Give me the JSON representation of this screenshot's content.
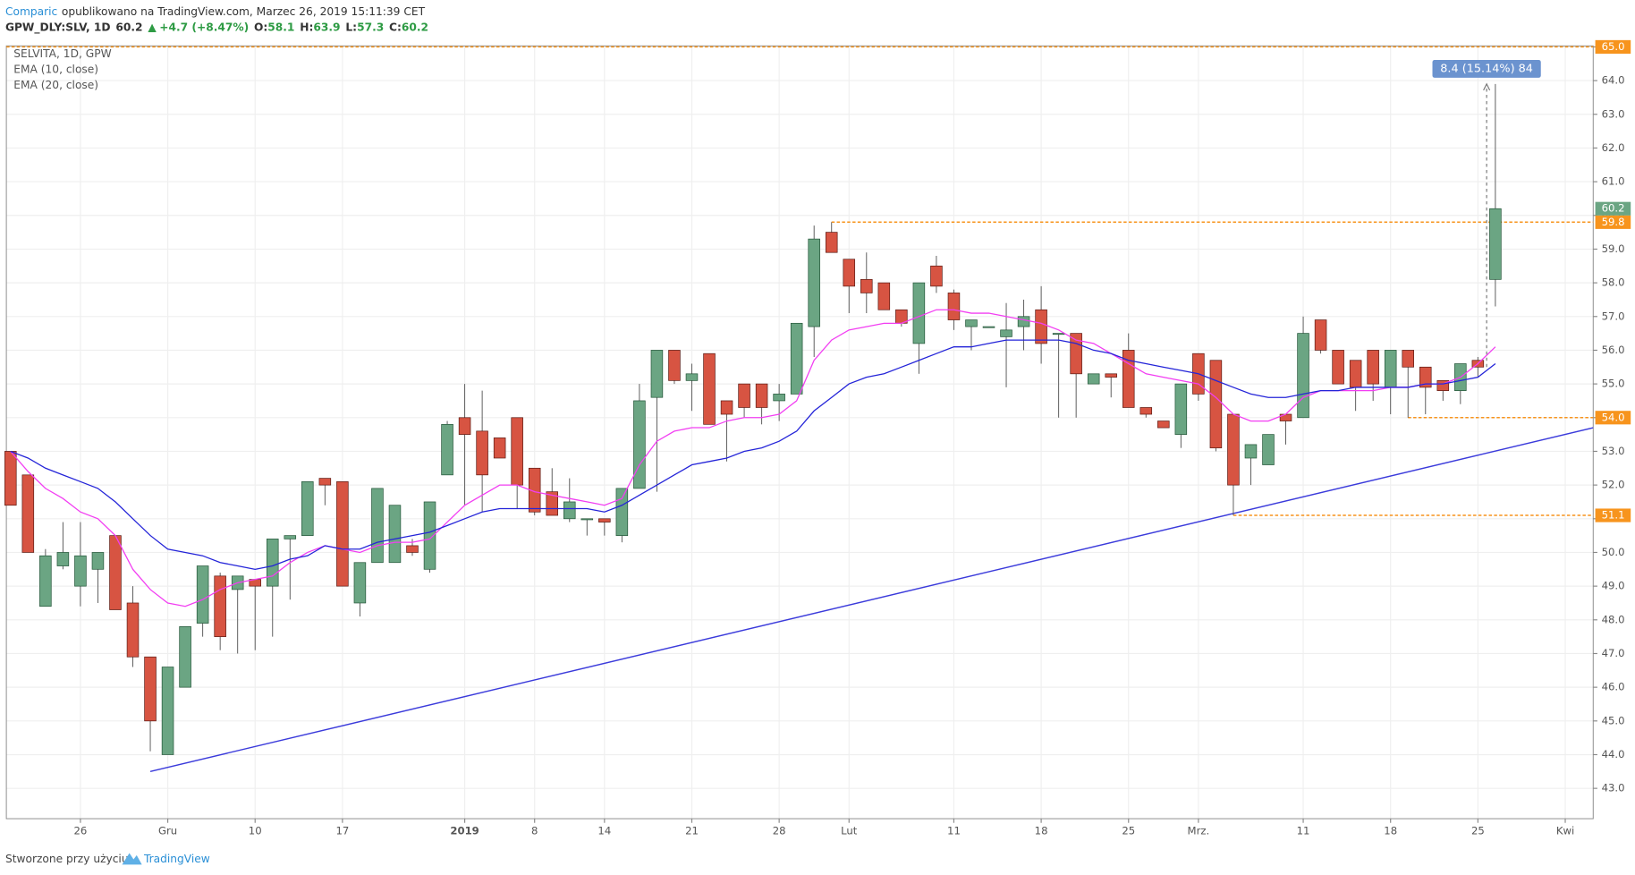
{
  "chart_data": {
    "type": "candlestick",
    "header": {
      "source": "Comparic",
      "published": "opublikowano na TradingView.com, Marzec 26, 2019 15:11:39 CET",
      "symbol": "GPW_DLY:SLV, 1D",
      "arrow": "▲",
      "change": "+4.7 (+8.47%)",
      "ohlc_labels": [
        "O:",
        "H:",
        "L:",
        "C:"
      ]
    },
    "title": "SELVITA, 1D, GPW",
    "open": [
      53.0,
      52.3,
      48.4,
      49.6,
      49.0,
      49.5,
      50.5,
      48.5,
      46.9,
      44.0,
      46.0,
      47.9,
      49.3,
      48.9,
      49.2,
      49.0,
      50.4,
      50.5,
      52.2,
      52.1,
      48.5,
      49.7,
      49.7,
      50.2,
      49.5,
      52.3,
      54.0,
      53.6,
      53.4,
      54.0,
      52.5,
      51.8,
      51.0,
      51.0,
      51.0,
      50.5,
      51.9,
      54.6,
      56.0,
      55.1,
      55.9,
      54.5,
      55.0,
      55.0,
      54.5,
      54.7,
      56.7,
      59.5,
      58.7,
      58.1,
      58.0,
      57.2,
      56.2,
      58.5,
      57.7,
      56.7,
      56.7,
      56.4,
      56.7,
      57.2,
      56.5,
      56.5,
      55.0,
      55.3,
      56.0,
      54.3,
      53.9,
      53.5,
      55.9,
      55.7,
      54.1,
      52.8,
      52.6,
      54.1,
      54.0,
      56.9,
      56.0,
      55.7,
      56.0,
      54.9,
      56.0,
      55.5,
      55.1,
      54.8,
      55.7,
      58.1
    ],
    "high": [
      53.0,
      52.3,
      50.1,
      50.9,
      50.9,
      50.0,
      50.5,
      49.0,
      46.9,
      46.6,
      47.8,
      49.6,
      49.4,
      49.3,
      49.2,
      50.4,
      50.5,
      52.1,
      52.2,
      52.1,
      49.7,
      51.9,
      51.4,
      50.4,
      51.5,
      53.9,
      55.0,
      54.8,
      53.4,
      54.0,
      52.5,
      52.5,
      52.2,
      51.0,
      51.0,
      51.9,
      55.0,
      56.0,
      56.0,
      55.6,
      55.9,
      54.5,
      55.0,
      55.0,
      55.0,
      56.8,
      59.7,
      59.8,
      58.7,
      58.9,
      58.0,
      57.2,
      58.0,
      58.8,
      57.8,
      56.9,
      56.7,
      57.4,
      57.5,
      57.9,
      56.5,
      56.5,
      55.3,
      55.3,
      56.5,
      54.3,
      53.9,
      55.0,
      55.9,
      55.7,
      54.1,
      53.2,
      53.5,
      54.1,
      57.0,
      56.9,
      56.0,
      55.7,
      56.0,
      56.0,
      56.0,
      55.5,
      55.1,
      55.6,
      55.8,
      63.9
    ],
    "low": [
      51.4,
      50.0,
      48.4,
      49.5,
      48.4,
      48.5,
      48.3,
      46.6,
      44.1,
      44.0,
      46.0,
      47.5,
      47.1,
      47.0,
      47.1,
      47.5,
      48.6,
      50.5,
      51.4,
      49.0,
      48.1,
      49.7,
      49.7,
      49.9,
      49.4,
      52.3,
      51.4,
      51.2,
      52.8,
      51.3,
      51.1,
      51.1,
      50.9,
      50.5,
      50.5,
      50.3,
      51.9,
      51.8,
      55.0,
      54.2,
      53.8,
      52.7,
      54.0,
      53.8,
      53.9,
      54.7,
      55.8,
      58.9,
      57.1,
      57.1,
      57.2,
      56.7,
      55.3,
      57.7,
      56.6,
      56.0,
      56.7,
      54.9,
      56.0,
      55.6,
      54.0,
      54.0,
      55.0,
      54.6,
      54.3,
      54.0,
      53.7,
      53.1,
      54.5,
      53.0,
      51.1,
      52.0,
      52.6,
      53.2,
      54.0,
      55.9,
      55.0,
      54.2,
      54.5,
      54.1,
      54.0,
      54.1,
      54.5,
      54.4,
      55.2,
      57.3
    ],
    "close": [
      51.4,
      50.0,
      49.9,
      50.0,
      49.9,
      50.0,
      48.3,
      46.9,
      45.0,
      46.6,
      47.8,
      49.6,
      47.5,
      49.3,
      49.0,
      50.4,
      50.5,
      52.1,
      52.0,
      49.0,
      49.7,
      51.9,
      51.4,
      50.0,
      51.5,
      53.8,
      53.5,
      52.3,
      52.8,
      52.0,
      51.2,
      51.1,
      51.5,
      51.0,
      50.9,
      51.9,
      54.5,
      56.0,
      55.1,
      55.3,
      53.8,
      54.1,
      54.3,
      54.3,
      54.7,
      56.8,
      59.3,
      58.9,
      57.9,
      57.7,
      57.2,
      56.8,
      58.0,
      57.9,
      56.9,
      56.9,
      56.7,
      56.6,
      57.0,
      56.2,
      56.5,
      55.3,
      55.3,
      55.2,
      54.3,
      54.1,
      53.7,
      55.0,
      54.7,
      53.1,
      52.0,
      53.2,
      53.5,
      53.9,
      56.5,
      56.0,
      55.0,
      54.9,
      55.0,
      56.0,
      55.5,
      54.9,
      54.8,
      55.6,
      55.5,
      60.2
    ],
    "series": [
      {
        "name": "EMA (10, close)",
        "color": "#f23ef2",
        "values": [
          53.0,
          52.4,
          51.9,
          51.6,
          51.2,
          51.0,
          50.5,
          49.5,
          48.9,
          48.5,
          48.4,
          48.6,
          48.9,
          49.1,
          49.2,
          49.3,
          49.7,
          50.0,
          50.2,
          50.1,
          50.0,
          50.2,
          50.3,
          50.3,
          50.4,
          50.9,
          51.4,
          51.7,
          52.0,
          52.0,
          51.8,
          51.7,
          51.6,
          51.5,
          51.4,
          51.6,
          52.6,
          53.3,
          53.6,
          53.7,
          53.7,
          53.9,
          54.0,
          54.0,
          54.1,
          54.5,
          55.7,
          56.3,
          56.6,
          56.7,
          56.8,
          56.8,
          57.0,
          57.2,
          57.2,
          57.1,
          57.1,
          57.0,
          56.9,
          56.8,
          56.6,
          56.3,
          56.2,
          55.9,
          55.6,
          55.3,
          55.2,
          55.1,
          55.0,
          54.6,
          54.1,
          53.9,
          53.9,
          54.1,
          54.6,
          54.8,
          54.8,
          54.8,
          54.8,
          54.9,
          54.9,
          55.0,
          55.0,
          55.2,
          55.6,
          56.1
        ]
      },
      {
        "name": "EMA (20, close)",
        "color": "#2424d8",
        "values": [
          53.0,
          52.8,
          52.5,
          52.3,
          52.1,
          51.9,
          51.5,
          51.0,
          50.5,
          50.1,
          50.0,
          49.9,
          49.7,
          49.6,
          49.5,
          49.6,
          49.8,
          49.9,
          50.2,
          50.1,
          50.1,
          50.3,
          50.4,
          50.5,
          50.6,
          50.8,
          51.0,
          51.2,
          51.3,
          51.3,
          51.3,
          51.3,
          51.3,
          51.3,
          51.2,
          51.4,
          51.7,
          52.0,
          52.3,
          52.6,
          52.7,
          52.8,
          53.0,
          53.1,
          53.3,
          53.6,
          54.2,
          54.6,
          55.0,
          55.2,
          55.3,
          55.5,
          55.7,
          55.9,
          56.1,
          56.1,
          56.2,
          56.3,
          56.3,
          56.3,
          56.3,
          56.2,
          56.0,
          55.9,
          55.7,
          55.6,
          55.5,
          55.4,
          55.3,
          55.1,
          54.9,
          54.7,
          54.6,
          54.6,
          54.7,
          54.8,
          54.8,
          54.9,
          54.9,
          54.9,
          54.9,
          55.0,
          55.0,
          55.1,
          55.2,
          55.6
        ]
      }
    ],
    "up_color": "#6ba583",
    "down_color": "#d75442",
    "xlim": [
      0.76,
      91.6
    ],
    "xticks": [
      {
        "value": 5,
        "label": "26"
      },
      {
        "value": 10,
        "label": "Gru"
      },
      {
        "value": 15,
        "label": "10"
      },
      {
        "value": 20,
        "label": "17"
      },
      {
        "value": 27,
        "label": "2019"
      },
      {
        "value": 31,
        "label": "8"
      },
      {
        "value": 35,
        "label": "14"
      },
      {
        "value": 40,
        "label": "21"
      },
      {
        "value": 45,
        "label": "28"
      },
      {
        "value": 49,
        "label": "Lut"
      },
      {
        "value": 55,
        "label": "11"
      },
      {
        "value": 60,
        "label": "18"
      },
      {
        "value": 65,
        "label": "25"
      },
      {
        "value": 69,
        "label": "Mrz."
      },
      {
        "value": 75,
        "label": "11"
      },
      {
        "value": 80,
        "label": "18"
      },
      {
        "value": 85,
        "label": "25"
      },
      {
        "value": 90,
        "label": "Kwi"
      }
    ],
    "ylim": [
      42.1,
      65.03
    ],
    "yticks": [
      {
        "value": 43,
        "label": "43.0"
      },
      {
        "value": 44,
        "label": "44.0"
      },
      {
        "value": 45,
        "label": "45.0"
      },
      {
        "value": 46,
        "label": "46.0"
      },
      {
        "value": 47,
        "label": "47.0"
      },
      {
        "value": 48,
        "label": "48.0"
      },
      {
        "value": 49,
        "label": "49.0"
      },
      {
        "value": 50,
        "label": "50.0"
      },
      {
        "value": 51,
        "label": "51.0"
      },
      {
        "value": 52,
        "label": "52.0"
      },
      {
        "value": 53,
        "label": "53.0"
      },
      {
        "value": 54,
        "label": "54.0"
      },
      {
        "value": 55,
        "label": "55.0"
      },
      {
        "value": 56,
        "label": "56.0"
      },
      {
        "value": 57,
        "label": "57.0"
      },
      {
        "value": 58,
        "label": "58.0"
      },
      {
        "value": 59,
        "label": "59.0"
      },
      {
        "value": 60,
        "label": "60.0"
      },
      {
        "value": 61,
        "label": "61.0"
      },
      {
        "value": 62,
        "label": "62.0"
      },
      {
        "value": 63,
        "label": "63.0"
      },
      {
        "value": 64,
        "label": "64.0"
      },
      {
        "value": 65,
        "label": "65.0"
      }
    ],
    "grid": true,
    "levels": [
      {
        "price": {
          "value": 65,
          "label": "65.0"
        }
      },
      {
        "price": 59.8,
        "from": 48
      },
      {
        "price": {
          "value": 54,
          "label": "54.0"
        },
        "from": 81
      },
      {
        "price": 51.1,
        "from": 71
      }
    ],
    "level_color": "#f7941d",
    "trendline": {
      "from": [
        9,
        43.5
      ],
      "to": [
        91.6,
        53.7
      ],
      "color": "#3b3bdb"
    },
    "measure": {
      "label": "8.4 (15.14%) 84",
      "at": 85.5,
      "from": 55.5,
      "to": 63.9
    },
    "footer": "Stworzone przy użyciu",
    "footer_brand": "TradingView"
  }
}
